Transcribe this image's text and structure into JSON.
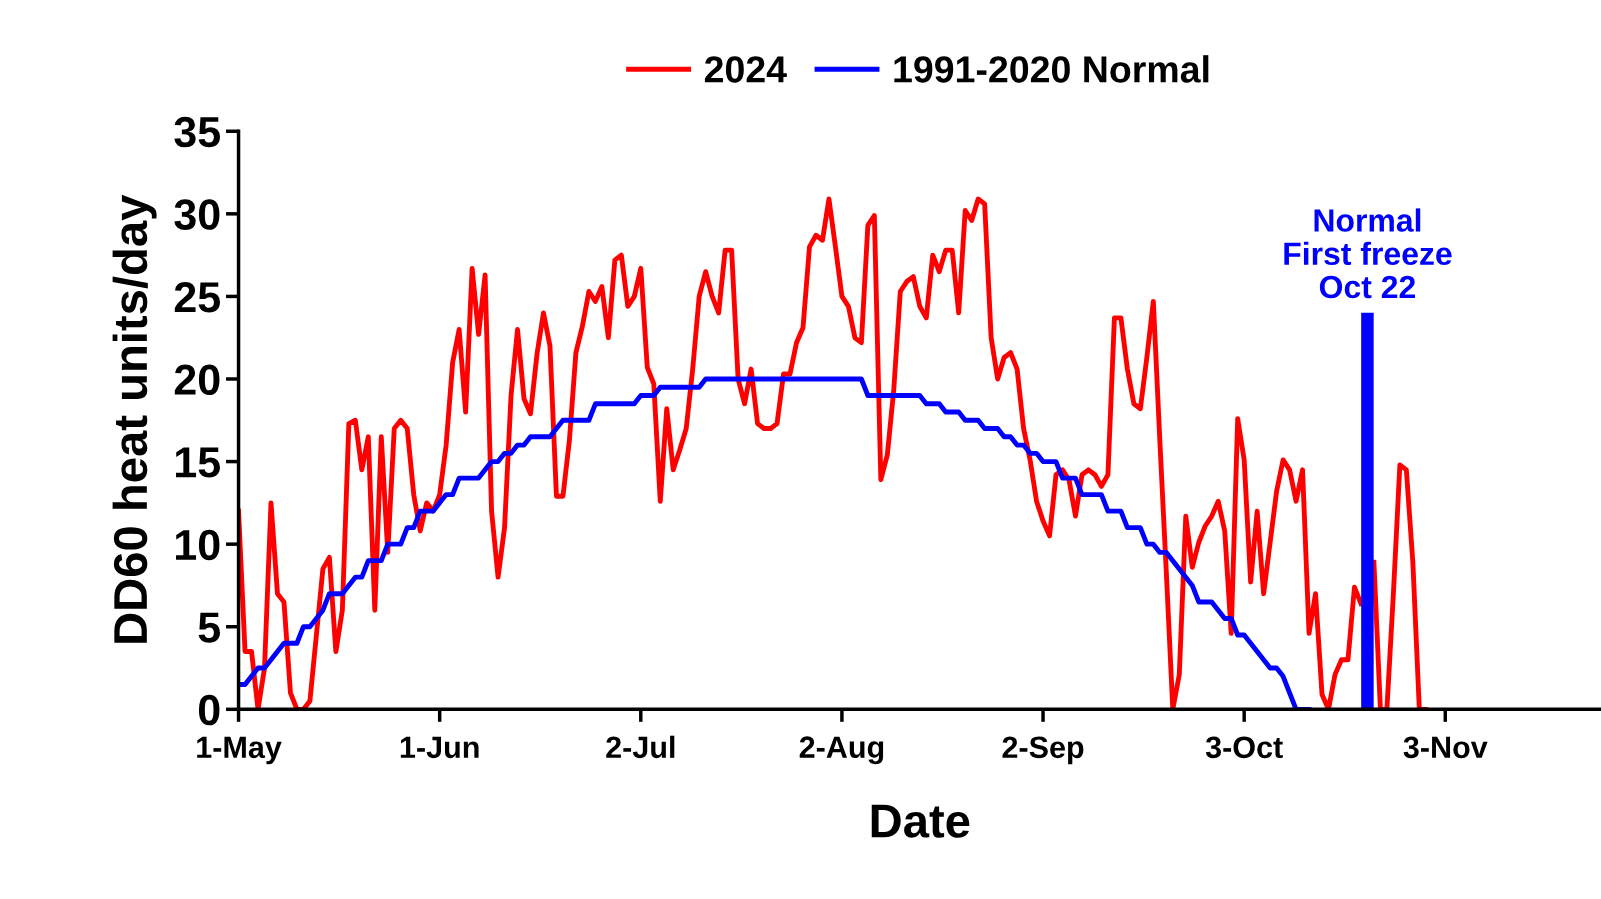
{
  "chart_data": {
    "type": "line",
    "xlabel": "Date",
    "ylabel": "DD60 heat units/day",
    "x": [
      "2024-05-01",
      "2024-05-02",
      "2024-05-03",
      "2024-05-04",
      "2024-05-05",
      "2024-05-06",
      "2024-05-07",
      "2024-05-08",
      "2024-05-09",
      "2024-05-10",
      "2024-05-11",
      "2024-05-12",
      "2024-05-13",
      "2024-05-14",
      "2024-05-15",
      "2024-05-16",
      "2024-05-17",
      "2024-05-18",
      "2024-05-19",
      "2024-05-20",
      "2024-05-21",
      "2024-05-22",
      "2024-05-23",
      "2024-05-24",
      "2024-05-25",
      "2024-05-26",
      "2024-05-27",
      "2024-05-28",
      "2024-05-29",
      "2024-05-30",
      "2024-05-31",
      "2024-06-01",
      "2024-06-02",
      "2024-06-03",
      "2024-06-04",
      "2024-06-05",
      "2024-06-06",
      "2024-06-07",
      "2024-06-08",
      "2024-06-09",
      "2024-06-10",
      "2024-06-11",
      "2024-06-12",
      "2024-06-13",
      "2024-06-14",
      "2024-06-15",
      "2024-06-16",
      "2024-06-17",
      "2024-06-18",
      "2024-06-19",
      "2024-06-20",
      "2024-06-21",
      "2024-06-22",
      "2024-06-23",
      "2024-06-24",
      "2024-06-25",
      "2024-06-26",
      "2024-06-27",
      "2024-06-28",
      "2024-06-29",
      "2024-06-30",
      "2024-07-01",
      "2024-07-02",
      "2024-07-03",
      "2024-07-04",
      "2024-07-05",
      "2024-07-06",
      "2024-07-07",
      "2024-07-08",
      "2024-07-09",
      "2024-07-10",
      "2024-07-11",
      "2024-07-12",
      "2024-07-13",
      "2024-07-14",
      "2024-07-15",
      "2024-07-16",
      "2024-07-17",
      "2024-07-18",
      "2024-07-19",
      "2024-07-20",
      "2024-07-21",
      "2024-07-22",
      "2024-07-23",
      "2024-07-24",
      "2024-07-25",
      "2024-07-26",
      "2024-07-27",
      "2024-07-28",
      "2024-07-29",
      "2024-07-30",
      "2024-07-31",
      "2024-08-01",
      "2024-08-02",
      "2024-08-03",
      "2024-08-04",
      "2024-08-05",
      "2024-08-06",
      "2024-08-07",
      "2024-08-08",
      "2024-08-09",
      "2024-08-10",
      "2024-08-11",
      "2024-08-12",
      "2024-08-13",
      "2024-08-14",
      "2024-08-15",
      "2024-08-16",
      "2024-08-17",
      "2024-08-18",
      "2024-08-19",
      "2024-08-20",
      "2024-08-21",
      "2024-08-22",
      "2024-08-23",
      "2024-08-24",
      "2024-08-25",
      "2024-08-26",
      "2024-08-27",
      "2024-08-28",
      "2024-08-29",
      "2024-08-30",
      "2024-08-31",
      "2024-09-01",
      "2024-09-02",
      "2024-09-03",
      "2024-09-04",
      "2024-09-05",
      "2024-09-06",
      "2024-09-07",
      "2024-09-08",
      "2024-09-09",
      "2024-09-10",
      "2024-09-11",
      "2024-09-12",
      "2024-09-13",
      "2024-09-14",
      "2024-09-15",
      "2024-09-16",
      "2024-09-17",
      "2024-09-18",
      "2024-09-19",
      "2024-09-20",
      "2024-09-21",
      "2024-09-22",
      "2024-09-23",
      "2024-09-24",
      "2024-09-25",
      "2024-09-26",
      "2024-09-27",
      "2024-09-28",
      "2024-09-29",
      "2024-09-30",
      "2024-10-01",
      "2024-10-02",
      "2024-10-03",
      "2024-10-04",
      "2024-10-05",
      "2024-10-06",
      "2024-10-07",
      "2024-10-08",
      "2024-10-09",
      "2024-10-10",
      "2024-10-11",
      "2024-10-12",
      "2024-10-13",
      "2024-10-14",
      "2024-10-15",
      "2024-10-16",
      "2024-10-17",
      "2024-10-18",
      "2024-10-19",
      "2024-10-20",
      "2024-10-21",
      "2024-10-22",
      "2024-10-23",
      "2024-10-24",
      "2024-10-25",
      "2024-10-26",
      "2024-10-27",
      "2024-10-28",
      "2024-10-29",
      "2024-10-30",
      "2024-10-31"
    ],
    "series": [
      {
        "name": "2024",
        "color": "#ff0000",
        "values": [
          12,
          3.5,
          3.5,
          0,
          2.5,
          12.5,
          7,
          6.5,
          1,
          0,
          0,
          0.5,
          4.5,
          8.5,
          9.2,
          3.5,
          6,
          17.3,
          17.5,
          14.5,
          16.5,
          6,
          16.5,
          9.5,
          17,
          17.5,
          17,
          13,
          10.8,
          12.5,
          12,
          13,
          16,
          21,
          23,
          18,
          26.7,
          22.7,
          26.3,
          12,
          8,
          11,
          19,
          23,
          18.8,
          17.9,
          21.5,
          24,
          22,
          12.9,
          12.9,
          16.3,
          21.6,
          23.2,
          25.3,
          24.7,
          25.6,
          22.5,
          27.2,
          27.5,
          24.4,
          25,
          26.7,
          20.7,
          19.7,
          12.6,
          18.2,
          14.5,
          15.7,
          17,
          20.6,
          25,
          26.5,
          25,
          24,
          27.8,
          27.8,
          20,
          18.5,
          20.6,
          17.3,
          17,
          17,
          17.3,
          20.3,
          20.3,
          22.2,
          23.1,
          28,
          28.7,
          28.4,
          30.9,
          28,
          25,
          24.4,
          22.5,
          22.2,
          29.3,
          29.9,
          13.9,
          15.4,
          19.4,
          25.3,
          25.9,
          26.2,
          24.4,
          23.7,
          27.5,
          26.5,
          27.8,
          27.8,
          24,
          30.2,
          29.6,
          30.9,
          30.6,
          22.5,
          20,
          21.3,
          21.6,
          20.6,
          17,
          15.1,
          12.6,
          11.4,
          10.5,
          14.2,
          14.5,
          13.9,
          11.7,
          14.2,
          14.5,
          14.2,
          13.5,
          14.2,
          23.7,
          23.7,
          20.6,
          18.5,
          18.2,
          21.3,
          24.7,
          16.3,
          8.3,
          0,
          2.1,
          11.7,
          8.6,
          10.1,
          11.1,
          11.7,
          12.6,
          10.8,
          4.6,
          17.6,
          15.1,
          7.7,
          12,
          7,
          10.1,
          13.2,
          15.1,
          14.5,
          12.6,
          14.5,
          4.6,
          7,
          0.9,
          0,
          2.1,
          3,
          3,
          7.4,
          6.4,
          null,
          8.9,
          0,
          0,
          7,
          14.8,
          14.5,
          8.9,
          0,
          0
        ]
      },
      {
        "name": "1991-2020 Normal",
        "color": "#0000ff",
        "values": [
          1.5,
          1.5,
          2,
          2.5,
          2.5,
          3,
          3.5,
          4,
          4,
          4,
          5,
          5,
          5.5,
          6,
          7,
          7,
          7,
          7.5,
          8,
          8,
          9,
          9,
          9,
          10,
          10,
          10,
          11,
          11,
          12,
          12,
          12,
          12.5,
          13,
          13,
          14,
          14,
          14,
          14,
          14.5,
          15,
          15,
          15.5,
          15.5,
          16,
          16,
          16.5,
          16.5,
          16.5,
          16.5,
          17,
          17.5,
          17.5,
          17.5,
          17.5,
          17.5,
          18.5,
          18.5,
          18.5,
          18.5,
          18.5,
          18.5,
          18.5,
          19,
          19,
          19,
          19.5,
          19.5,
          19.5,
          19.5,
          19.5,
          19.5,
          19.5,
          20,
          20,
          20,
          20,
          20,
          20,
          20,
          20,
          20,
          20,
          20,
          20,
          20,
          20,
          20,
          20,
          20,
          20,
          20,
          20,
          20,
          20,
          20,
          20,
          20,
          19,
          19,
          19,
          19,
          19,
          19,
          19,
          19,
          19,
          18.5,
          18.5,
          18.5,
          18,
          18,
          18,
          17.5,
          17.5,
          17.5,
          17,
          17,
          17,
          16.5,
          16.5,
          16,
          16,
          15.5,
          15.5,
          15,
          15,
          15,
          14,
          14,
          14,
          13,
          13,
          13,
          13,
          12,
          12,
          12,
          11,
          11,
          11,
          10,
          10,
          9.5,
          9.5,
          9,
          8.5,
          8,
          7.5,
          6.5,
          6.5,
          6.5,
          6,
          5.5,
          5.5,
          4.5,
          4.5,
          4,
          3.5,
          3,
          2.5,
          2.5,
          2,
          1,
          0,
          0,
          0,
          null,
          null,
          null,
          null,
          null,
          null,
          null,
          null,
          null,
          null,
          null,
          null,
          null,
          null,
          null,
          null,
          null,
          null
        ]
      }
    ],
    "xlim": [
      "2024-05-01",
      "2024-11-27"
    ],
    "xticks": [
      {
        "value": "2024-05-01",
        "label": "1-May"
      },
      {
        "value": "2024-06-01",
        "label": "1-Jun"
      },
      {
        "value": "2024-07-02",
        "label": "2-Jul"
      },
      {
        "value": "2024-08-02",
        "label": "2-Aug"
      },
      {
        "value": "2024-09-02",
        "label": "2-Sep"
      },
      {
        "value": "2024-10-03",
        "label": "3-Oct"
      },
      {
        "value": "2024-11-03",
        "label": "3-Nov"
      }
    ],
    "ylim": [
      0,
      35
    ],
    "yticks": [
      0,
      5,
      10,
      15,
      20,
      25,
      30,
      35
    ],
    "ref_lines": [
      {
        "axis": "x",
        "value": "2024-10-22",
        "label": "Normal\nFirst freeze\nOct 22",
        "color": "#0000ff"
      }
    ],
    "legend": "top",
    "grid": false
  }
}
